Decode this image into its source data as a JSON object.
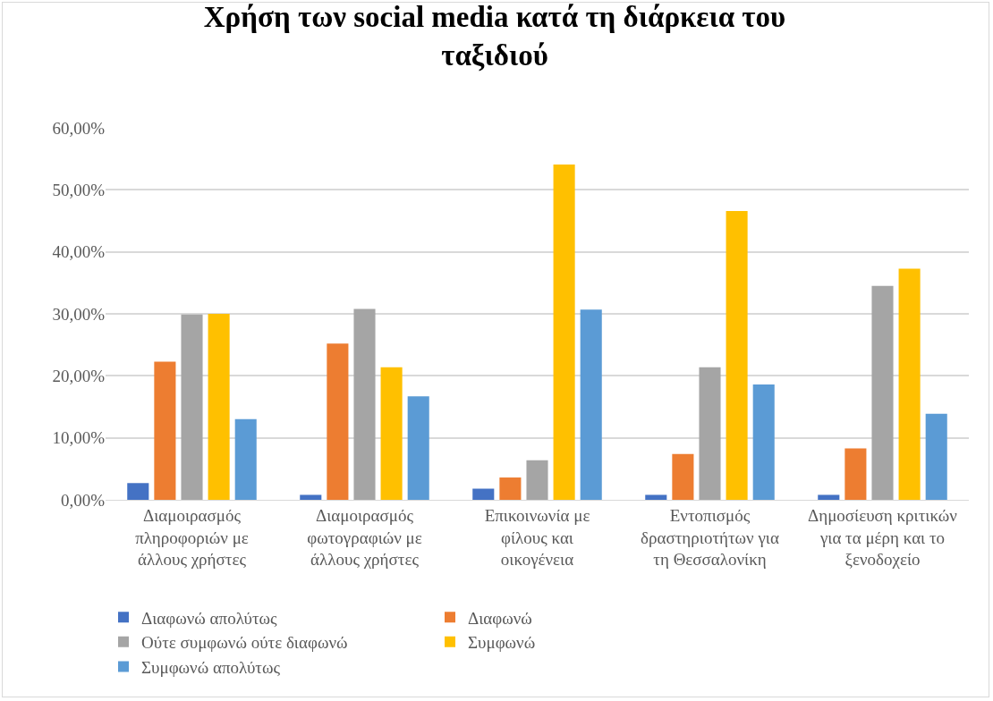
{
  "chart_data": {
    "type": "bar",
    "title": "Χρήση των social media κατά τη διάρκεια του ταξιδιού",
    "categories": [
      "Διαμοιρασμός πληροφοριών με άλλους χρήστες",
      "Διαμοιρασμός φωτογραφιών με άλλους χρήστες",
      "Επικοινωνία με φίλους και οικογένεια",
      "Εντοπισμός δραστηριοτήτων για τη Θεσσαλονίκη",
      "Δημοσίευση κριτικών για τα μέρη και το ξενοδοχείο"
    ],
    "series": [
      {
        "name": "Διαφωνώ απολύτως",
        "color": "#4472c4",
        "values": [
          2.7,
          0.8,
          1.8,
          0.8,
          0.8
        ]
      },
      {
        "name": "Διαφωνώ",
        "color": "#ed7d31",
        "values": [
          22.3,
          25.2,
          3.6,
          7.4,
          8.3
        ]
      },
      {
        "name": "Ούτε συμφωνώ ούτε διαφωνώ",
        "color": "#a5a5a5",
        "values": [
          29.9,
          30.8,
          6.4,
          21.4,
          34.5
        ]
      },
      {
        "name": "Συμφωνώ",
        "color": "#ffc000",
        "values": [
          30.0,
          21.4,
          54.1,
          46.6,
          37.3
        ]
      },
      {
        "name": "Συμφωνώ απολύτως",
        "color": "#5b9bd5",
        "values": [
          13.0,
          16.7,
          30.7,
          18.6,
          13.9
        ]
      }
    ],
    "ylim": [
      0,
      60
    ],
    "yticks": [
      {
        "value": 0,
        "label": "0,00%"
      },
      {
        "value": 10,
        "label": "10,00%"
      },
      {
        "value": 20,
        "label": "20,00%"
      },
      {
        "value": 30,
        "label": "30,00%"
      },
      {
        "value": 40,
        "label": "40,00%"
      },
      {
        "value": 50,
        "label": "50,00%"
      },
      {
        "value": 60,
        "label": "60,00%"
      }
    ],
    "grid": "y",
    "legend": "bottom"
  }
}
